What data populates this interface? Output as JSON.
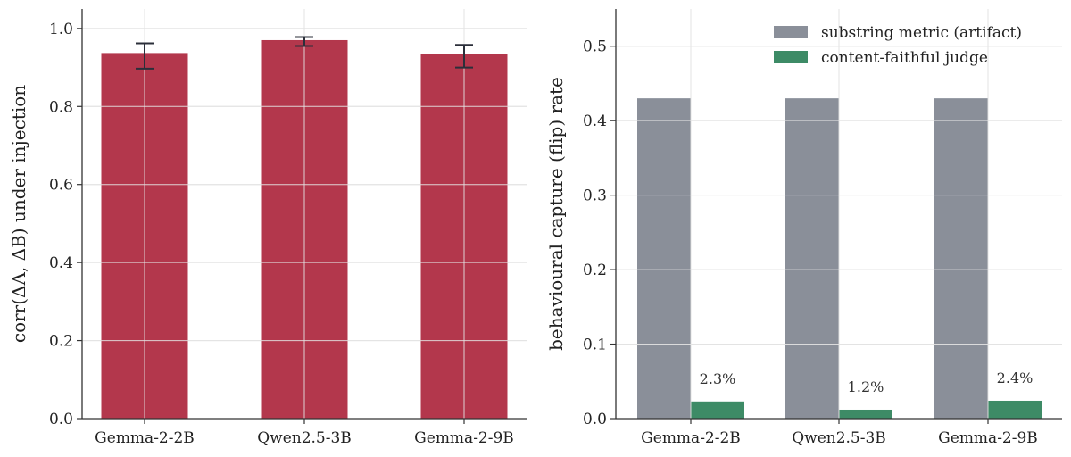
{
  "chart_data": [
    {
      "type": "bar",
      "categories": [
        "Gemma-2-2B",
        "Qwen2.5-3B",
        "Gemma-2-9B"
      ],
      "values": [
        0.937,
        0.97,
        0.935
      ],
      "error": [
        [
          0.897,
          0.962
        ],
        [
          0.955,
          0.978
        ],
        [
          0.9,
          0.958
        ]
      ],
      "ylabel": "corr(ΔA, ΔB) under injection",
      "ylim": [
        0,
        1.05
      ],
      "yticks": [
        "0.0",
        "0.2",
        "0.4",
        "0.6",
        "0.8",
        "1.0"
      ],
      "grid": true,
      "colors": {
        "bar": "#b3374c",
        "error": "#2b2f3a",
        "grid": "#dddddd",
        "axis": "#333333"
      }
    },
    {
      "type": "bar",
      "categories": [
        "Gemma-2-2B",
        "Qwen2.5-3B",
        "Gemma-2-9B"
      ],
      "series": [
        {
          "name": "substring metric (artifact)",
          "values": [
            0.43,
            0.43,
            0.43
          ],
          "color": "#8a8f99"
        },
        {
          "name": "content-faithful judge",
          "values": [
            0.023,
            0.012,
            0.024
          ],
          "color": "#3d8b66",
          "labels": [
            "2.3%",
            "1.2%",
            "2.4%"
          ]
        }
      ],
      "ylabel": "behavioural capture (flip) rate",
      "ylim": [
        0,
        0.55
      ],
      "yticks": [
        "0.0",
        "0.1",
        "0.2",
        "0.3",
        "0.4",
        "0.5"
      ],
      "legend": "top-right",
      "grid": true,
      "colors": {
        "grid": "#dddddd",
        "axis": "#333333"
      }
    }
  ]
}
